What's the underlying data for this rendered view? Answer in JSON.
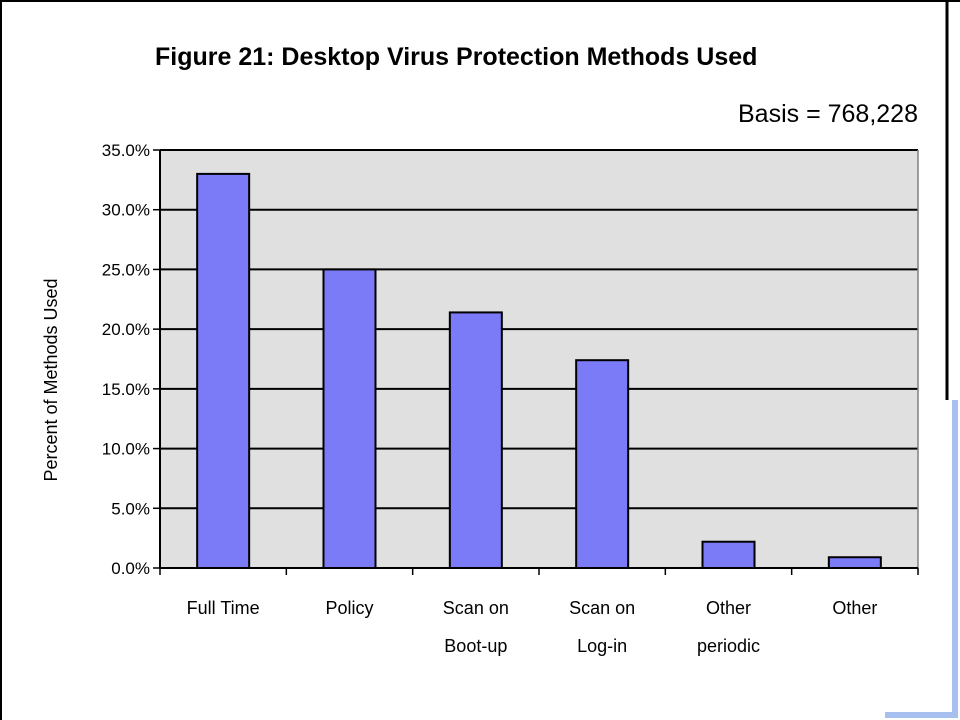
{
  "chart_data": {
    "type": "bar",
    "title": "Figure 21:  Desktop Virus Protection Methods Used",
    "annotation": "Basis = 768,228",
    "ylabel": "Percent of Methods Used",
    "xlabel": "",
    "categories": [
      [
        "Full Time"
      ],
      [
        "Policy"
      ],
      [
        "Scan on",
        "Boot-up"
      ],
      [
        "Scan on",
        "Log-in"
      ],
      [
        "Other",
        "periodic"
      ],
      [
        "Other"
      ]
    ],
    "values": [
      33.0,
      25.0,
      21.4,
      17.4,
      2.2,
      0.9
    ],
    "ylim": [
      0,
      35
    ],
    "yticks": [
      "0.0%",
      "5.0%",
      "10.0%",
      "15.0%",
      "20.0%",
      "25.0%",
      "30.0%",
      "35.0%"
    ],
    "grid": true,
    "bar_color": "#7b7bf7",
    "plot_background": "#e0e0e0"
  }
}
